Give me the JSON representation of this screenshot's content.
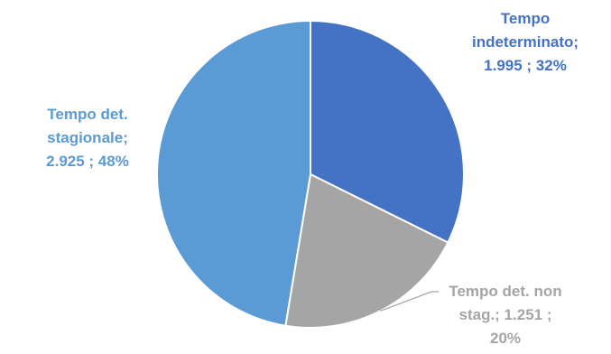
{
  "chart_data": {
    "type": "pie",
    "title": "",
    "slices": [
      {
        "name": "Tempo indeterminato",
        "value": 1995,
        "percent": 32,
        "color": "#4472C4",
        "label_color": "#4472C4",
        "label_lines": [
          "Tempo",
          "indeterminato;",
          "1.995 ; 32%"
        ]
      },
      {
        "name": "Tempo det. non stag.",
        "value": 1251,
        "percent": 20,
        "color": "#A5A5A5",
        "label_color": "#A5A5A5",
        "label_lines": [
          "Tempo det. non",
          "stag.;  1.251 ;",
          "20%"
        ]
      },
      {
        "name": "Tempo det. stagionale",
        "value": 2925,
        "percent": 48,
        "color": "#5B9BD5",
        "label_color": "#5B9BD5",
        "label_lines": [
          "Tempo  det.",
          "stagionale;",
          "2.925 ; 48%"
        ]
      }
    ],
    "start_angle": "top",
    "direction": "clockwise",
    "legend": "none"
  }
}
